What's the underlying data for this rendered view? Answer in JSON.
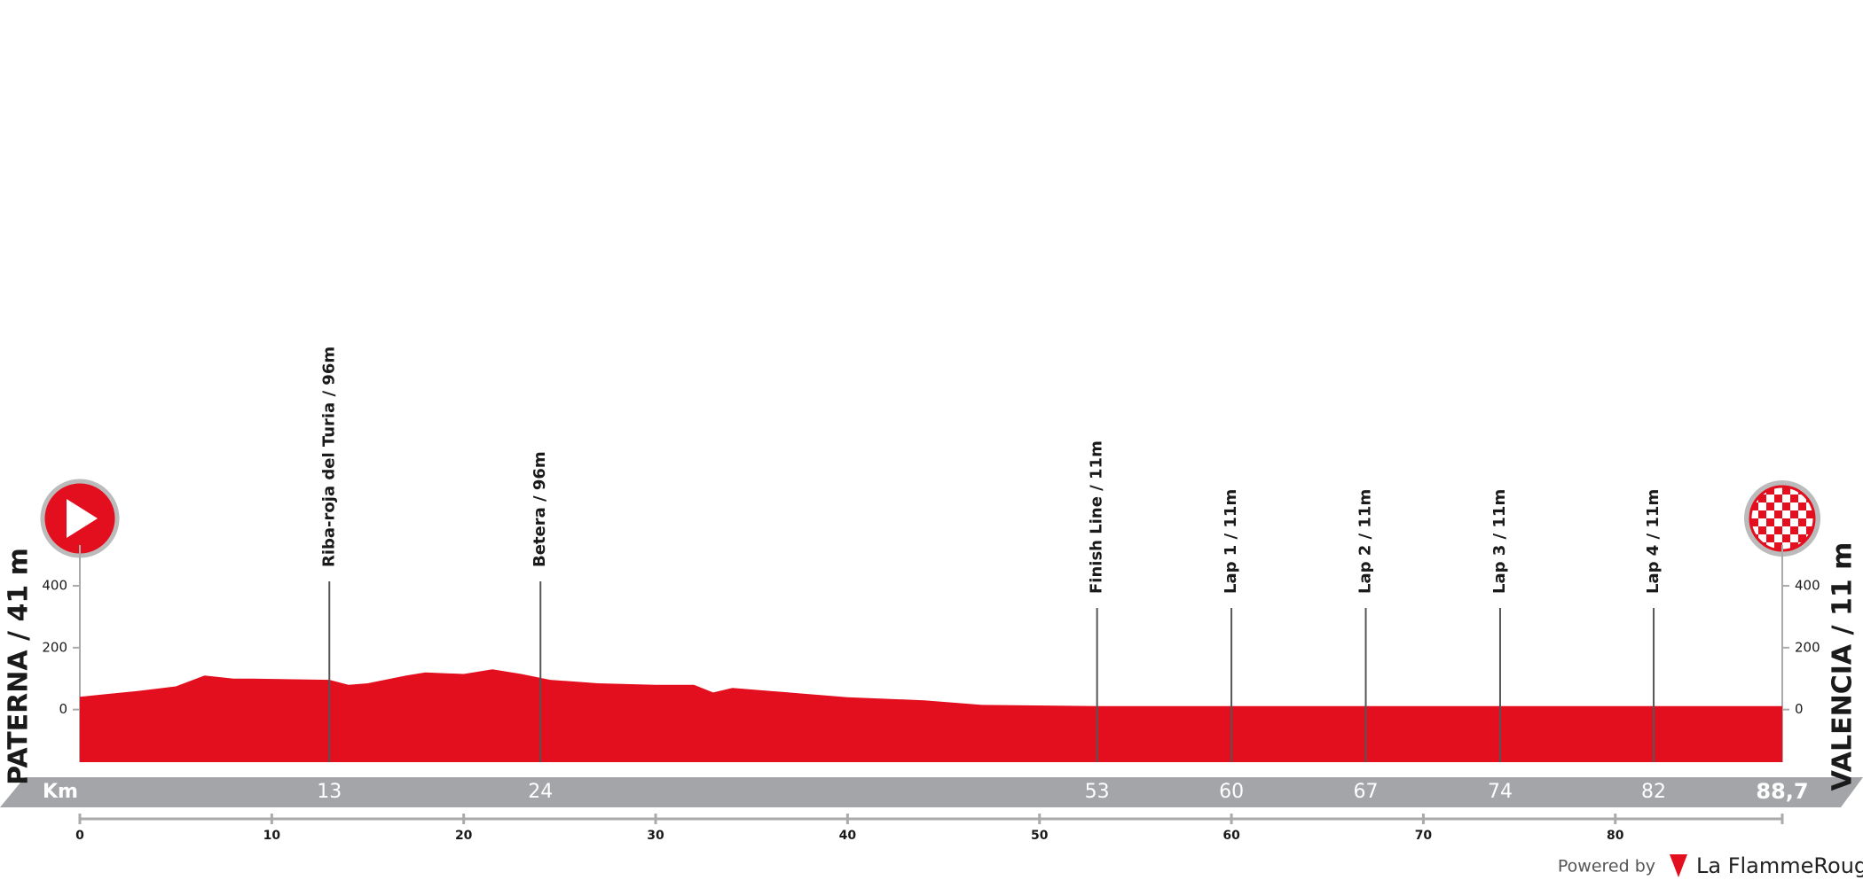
{
  "chart_data": {
    "type": "area",
    "start_label": "PATERNA / 41 m",
    "finish_label": "VALENCIA / 11 m",
    "x": [
      0,
      3,
      5,
      6.5,
      8,
      9,
      13,
      14,
      15,
      17,
      18,
      20,
      21.5,
      23,
      24.5,
      27,
      30,
      32,
      33,
      34,
      36,
      40,
      44,
      47,
      53,
      60,
      67,
      74,
      82,
      88.7
    ],
    "values": [
      41,
      60,
      75,
      110,
      100,
      100,
      96,
      80,
      85,
      110,
      120,
      115,
      130,
      115,
      96,
      85,
      80,
      80,
      55,
      70,
      60,
      40,
      30,
      15,
      11,
      11,
      11,
      11,
      11,
      11
    ],
    "color": "#e30f1f",
    "xlim": [
      0,
      88.7
    ],
    "xticks": [
      0,
      10,
      20,
      30,
      40,
      50,
      60,
      70,
      80
    ],
    "ylim": [
      -170,
      400
    ],
    "yticks": [
      0,
      200,
      400
    ],
    "km_label": "Km",
    "waypoints": [
      {
        "name": "Riba-roja del Turia / 96m",
        "km": 13
      },
      {
        "name": "Betera / 96m",
        "km": 24
      },
      {
        "name": "Finish Line / 11m",
        "km": 53
      },
      {
        "name": "Lap 1 / 11m",
        "km": 60
      },
      {
        "name": "Lap 2 / 11m",
        "km": 67
      },
      {
        "name": "Lap 3 / 11m",
        "km": 74
      },
      {
        "name": "Lap 4 / 11m",
        "km": 82
      }
    ],
    "distance": {
      "value": 88.7,
      "label": "88,7"
    },
    "powered_by": "Powered by",
    "brand": "La FlammeRouge"
  }
}
